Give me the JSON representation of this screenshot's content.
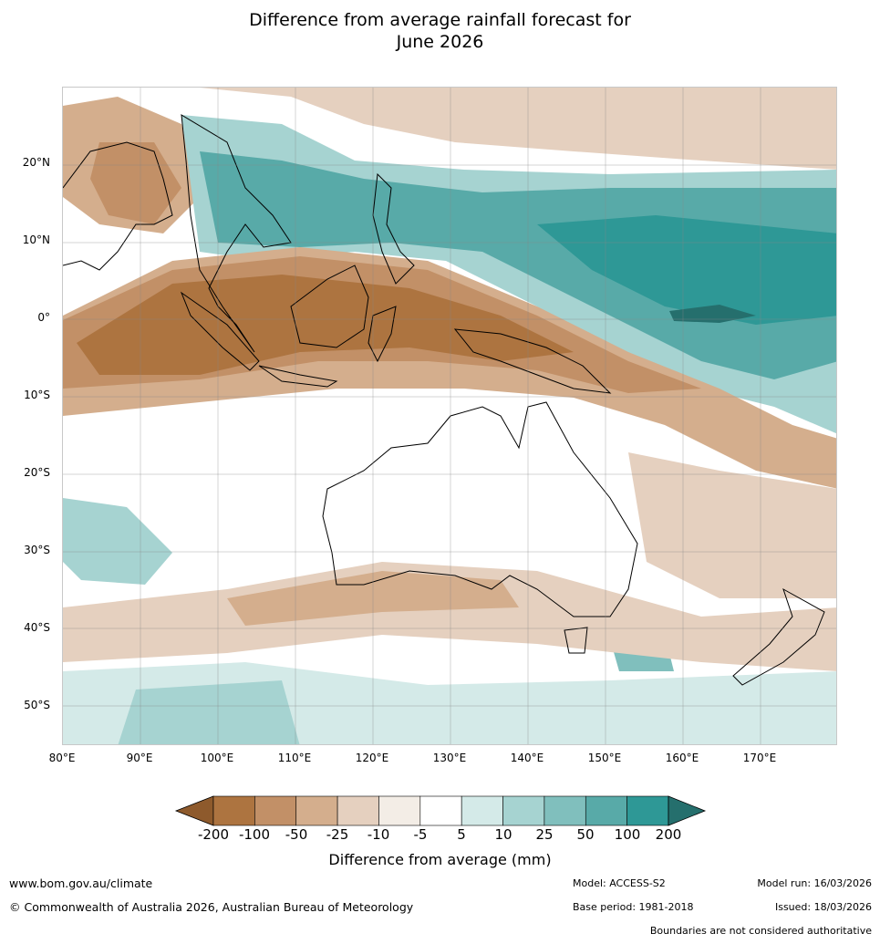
{
  "title_line1": "Difference from average rainfall forecast for",
  "title_line2": "June 2026",
  "map": {
    "region": "Australia, Maritime Continent and SW Pacific",
    "lon_range": [
      80,
      180
    ],
    "lat_range": [
      -55,
      30
    ],
    "lat_ticks": [
      "20°N",
      "10°N",
      "0°",
      "10°S",
      "20°S",
      "30°S",
      "40°S",
      "50°S"
    ],
    "lon_ticks": [
      "80°E",
      "90°E",
      "100°E",
      "110°E",
      "120°E",
      "130°E",
      "140°E",
      "150°E",
      "160°E",
      "170°E"
    ]
  },
  "legend": {
    "title": "Difference from average (mm)",
    "labels": [
      "-200",
      "-100",
      "-50",
      "-25",
      "-10",
      "-5",
      "5",
      "10",
      "25",
      "50",
      "100",
      "200"
    ],
    "colors": [
      "#8e5a2c",
      "#ad7440",
      "#c29067",
      "#d4ae8d",
      "#e5d0bf",
      "#f3ede6",
      "#ffffff",
      "#d4eae8",
      "#a6d3d1",
      "#80bfbd",
      "#58aaa8",
      "#2e9896",
      "#256f6d"
    ]
  },
  "footer": {
    "url": "www.bom.gov.au/climate",
    "copyright": "© Commonwealth of Australia 2026, Australian Bureau of Meteorology",
    "model": "Model: ACCESS-S2",
    "base_period": "Base period: 1981-2018",
    "model_run": "Model run: 16/03/2026",
    "issued": "Issued: 18/03/2026",
    "note": "Boundaries are not considered authoritative"
  }
}
